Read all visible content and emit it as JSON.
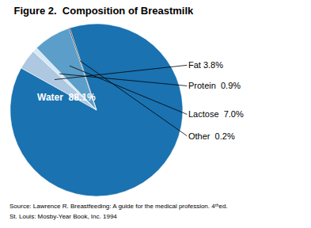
{
  "chart_data": {
    "type": "pie",
    "title": "Figure 2.  Composition of Breastmilk",
    "values": [
      88.1,
      3.8,
      0.9,
      7.0,
      0.2
    ],
    "value_labels": [
      "Water  88.1%",
      "Fat 3.8%",
      "Protein  0.9%",
      "Lactose  7.0%",
      "Other  0.2%"
    ],
    "colors": [
      "#1a72b0",
      "#adc8e0",
      "#d6e8f5",
      "#5b9ec9",
      "#1a1a1a"
    ],
    "data_labels": true,
    "annotations": [
      "Source: Lawrence R. Breastfeeding: A guide for the medical profession. 4ᵗʰed.",
      "St. Louis: Mosby-Year Book, Inc. 1994"
    ]
  }
}
